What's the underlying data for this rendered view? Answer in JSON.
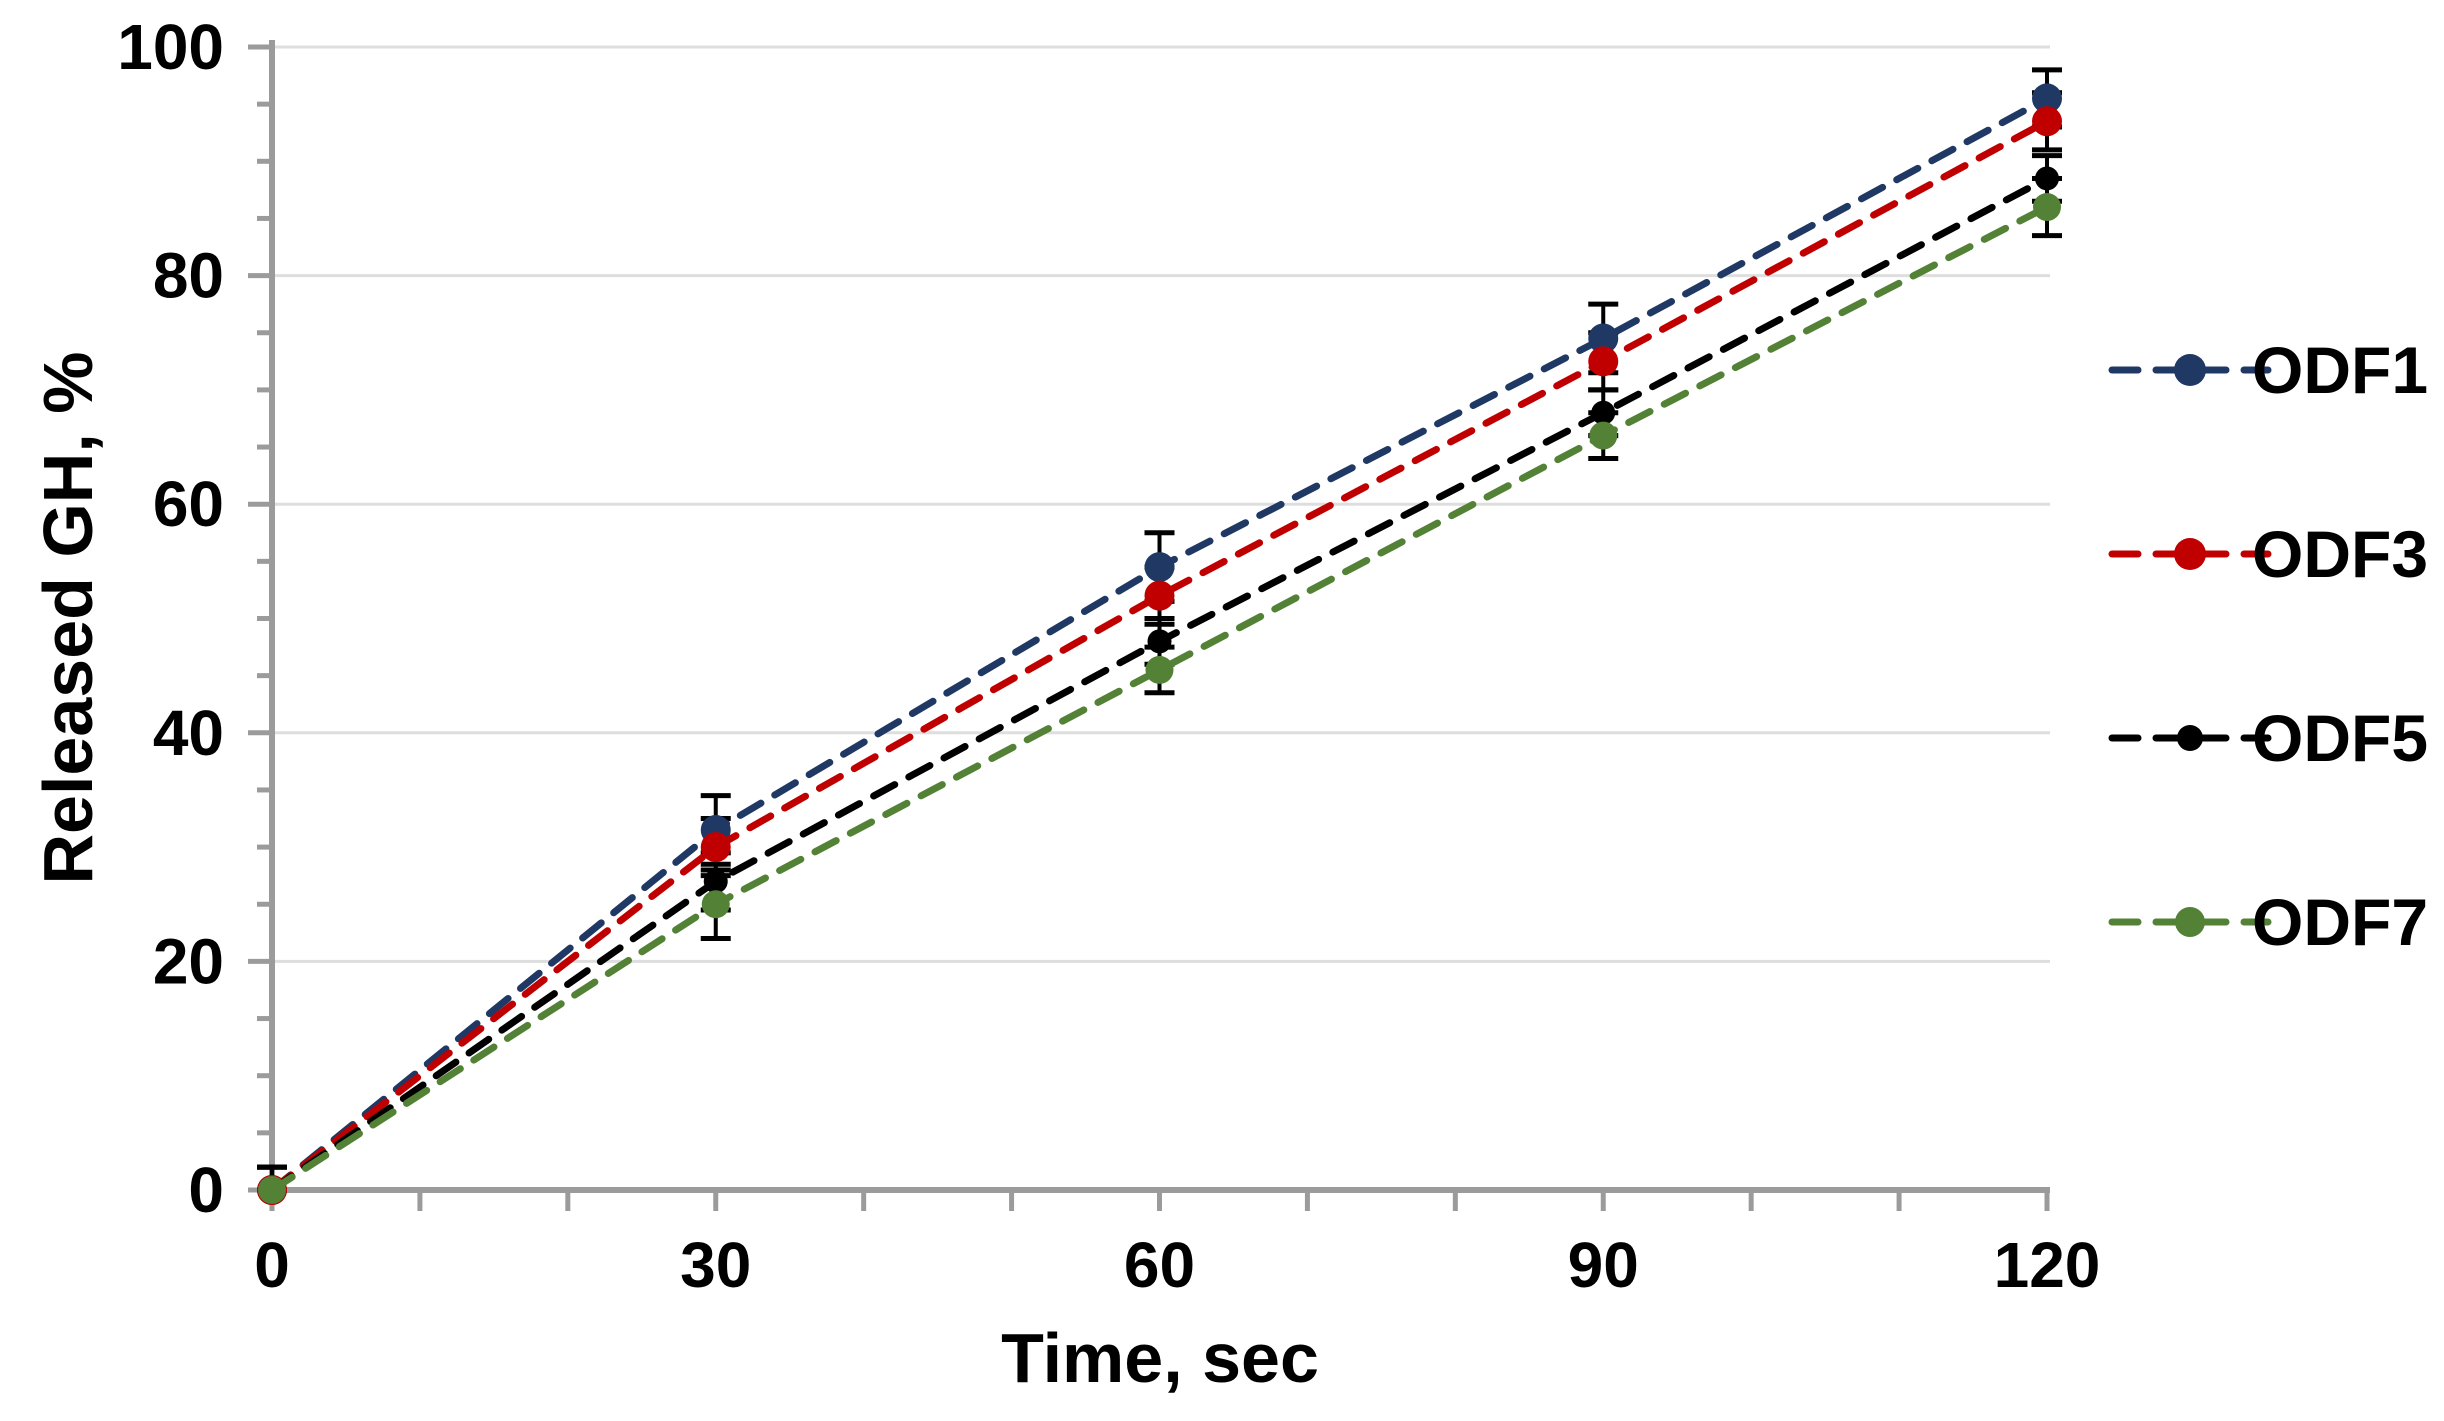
{
  "chart_data": {
    "type": "line",
    "title": "",
    "xlabel": "Time, sec",
    "ylabel": "Released GH, %",
    "x": [
      0,
      30,
      60,
      90,
      120
    ],
    "xlim": [
      0,
      120
    ],
    "ylim": [
      0,
      100
    ],
    "x_ticks": {
      "major": [
        0,
        30,
        60,
        90,
        120
      ],
      "labels": [
        "0",
        "30",
        "60",
        "90",
        "120"
      ],
      "minor_step": 10
    },
    "y_ticks": {
      "major": [
        0,
        20,
        40,
        60,
        80,
        100
      ],
      "labels": [
        "0",
        "20",
        "40",
        "60",
        "80",
        "100"
      ],
      "minor_step": 5
    },
    "grid": {
      "horizontal_major": true,
      "vertical": false
    },
    "line_style": "dashed",
    "marker": "circle",
    "error_bars": true,
    "legend_position": "right",
    "series": [
      {
        "name": "ODF1",
        "color": "#1F3864",
        "values": [
          0,
          31.5,
          54.5,
          74.5,
          95.5
        ],
        "errors": [
          2,
          3,
          3,
          3,
          2.5
        ],
        "marker_radius": 15
      },
      {
        "name": "ODF3",
        "color": "#C00000",
        "values": [
          0,
          30,
          52,
          72.5,
          93.5
        ],
        "errors": [
          2,
          2.5,
          2.5,
          2.5,
          2.5
        ],
        "marker_radius": 15
      },
      {
        "name": "ODF5",
        "color": "#000000",
        "values": [
          0,
          27,
          48,
          68,
          88.5
        ],
        "errors": [
          2,
          2.5,
          2,
          2,
          2
        ],
        "marker_radius": 12
      },
      {
        "name": "ODF7",
        "color": "#538135",
        "values": [
          0,
          25,
          45.5,
          66,
          86
        ],
        "errors": [
          2,
          3,
          2,
          2,
          2.5
        ],
        "marker_radius": 14
      }
    ],
    "style_colors": {
      "axis": "#9B9B9B",
      "grid": "#DEDEDE",
      "error_bar": "#000000",
      "text": "#000000",
      "background": "#FFFFFF"
    }
  }
}
